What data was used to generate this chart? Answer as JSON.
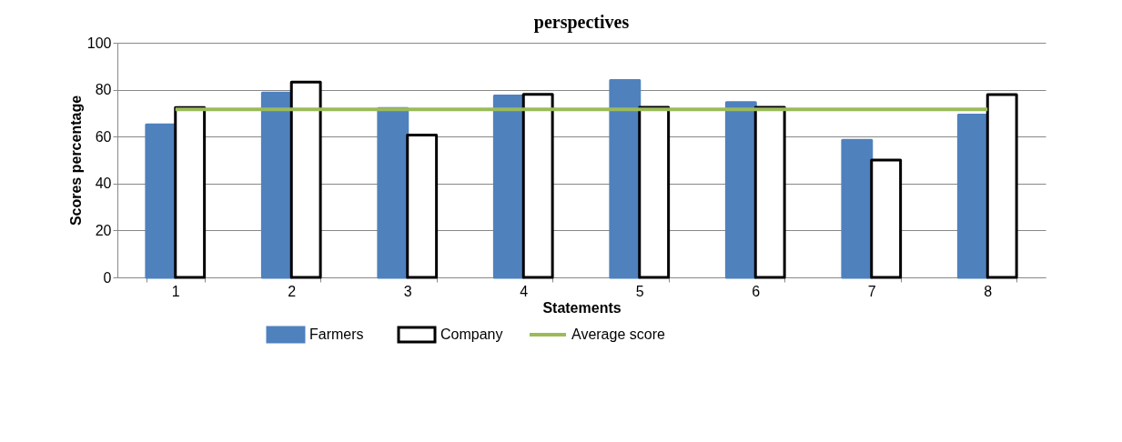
{
  "chart_data": {
    "type": "bar",
    "title": "perspectives",
    "xlabel": "Statements",
    "ylabel": "Scores percentage",
    "categories": [
      "1",
      "2",
      "3",
      "4",
      "5",
      "6",
      "7",
      "8"
    ],
    "series": [
      {
        "name": "Farmers",
        "color": "#4f81bd",
        "values": [
          65,
          78.6,
          72,
          77.3,
          83.9,
          74.5,
          58.4,
          69.2
        ]
      },
      {
        "name": "Company",
        "color": "#ffffff",
        "values": [
          72.4,
          83.2,
          60.7,
          78,
          72.5,
          72.5,
          50,
          77.9
        ]
      },
      {
        "name": "Average score",
        "type": "line",
        "color": "#9bbb59",
        "values": [
          71.6,
          71.6,
          71.6,
          71.6,
          71.6,
          71.6,
          71.6,
          71.6
        ]
      }
    ],
    "ylim": [
      0,
      100
    ],
    "yticks": [
      0,
      20,
      40,
      60,
      80,
      100
    ],
    "grid": "y",
    "legend": "bottom"
  }
}
